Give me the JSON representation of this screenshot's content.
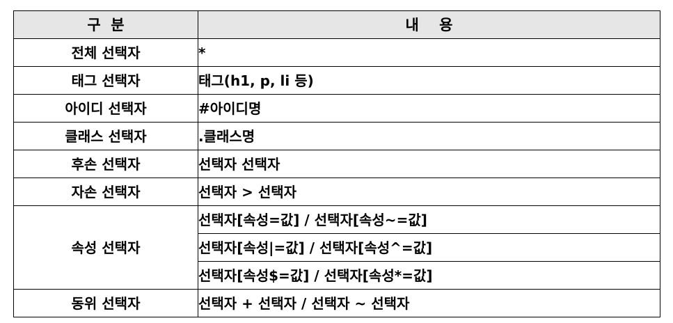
{
  "header": {
    "category": "구  분",
    "content": "내    용"
  },
  "rows": [
    {
      "category": "전체 선택자",
      "content": [
        "*"
      ]
    },
    {
      "category": "태그 선택자",
      "content": [
        "태그(h1, p, li 등)"
      ]
    },
    {
      "category": "아이디 선택자",
      "content": [
        "#아이디명"
      ]
    },
    {
      "category": "클래스 선택자",
      "content": [
        ".클래스명"
      ]
    },
    {
      "category": "후손 선택자",
      "content": [
        "선택자 선택자"
      ]
    },
    {
      "category": "자손 선택자",
      "content": [
        "선택자 > 선택자"
      ]
    },
    {
      "category": "속성 선택자",
      "content": [
        "선택자[속성=값] / 선택자[속성~=값]",
        "선택자[속성|=값] / 선택자[속성^=값]",
        "선택자[속성$=값] / 선택자[속성*=값]"
      ]
    },
    {
      "category": "동위 선택자",
      "content": [
        "선택자 + 선택자 / 선택자 ~ 선택자"
      ]
    }
  ]
}
